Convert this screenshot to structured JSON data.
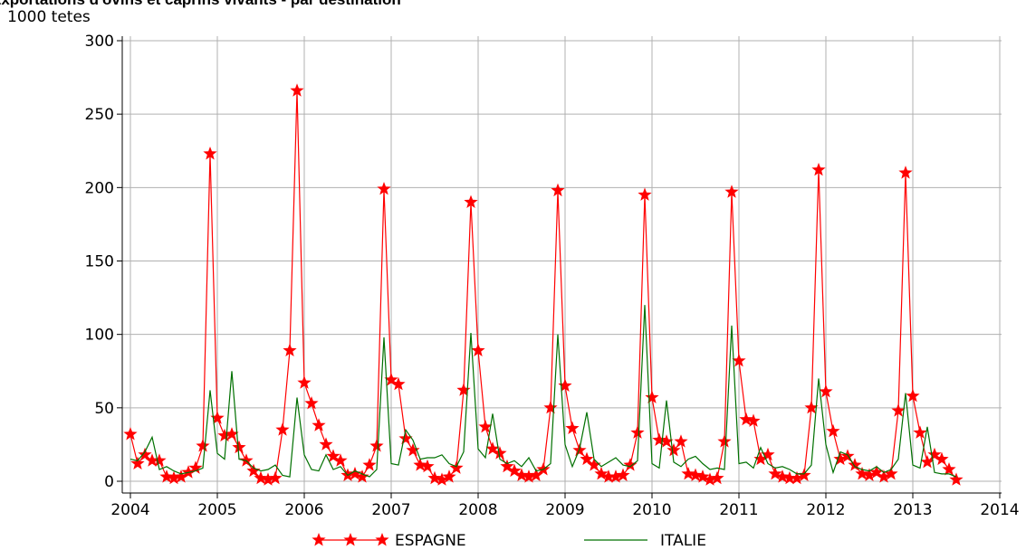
{
  "chart_data": {
    "type": "line",
    "title": "Exportations d'ovins et caprins vivants - par destination",
    "y_label": "1000 tetes",
    "x": [
      2004,
      2004.083,
      2004.167,
      2004.25,
      2004.333,
      2004.417,
      2004.5,
      2004.583,
      2004.667,
      2004.75,
      2004.833,
      2004.917,
      2005,
      2005.083,
      2005.167,
      2005.25,
      2005.333,
      2005.417,
      2005.5,
      2005.583,
      2005.667,
      2005.75,
      2005.833,
      2005.917,
      2006,
      2006.083,
      2006.167,
      2006.25,
      2006.333,
      2006.417,
      2006.5,
      2006.583,
      2006.667,
      2006.75,
      2006.833,
      2006.917,
      2007,
      2007.083,
      2007.167,
      2007.25,
      2007.333,
      2007.417,
      2007.5,
      2007.583,
      2007.667,
      2007.75,
      2007.833,
      2007.917,
      2008,
      2008.083,
      2008.167,
      2008.25,
      2008.333,
      2008.417,
      2008.5,
      2008.583,
      2008.667,
      2008.75,
      2008.833,
      2008.917,
      2009,
      2009.083,
      2009.167,
      2009.25,
      2009.333,
      2009.417,
      2009.5,
      2009.583,
      2009.667,
      2009.75,
      2009.833,
      2009.917,
      2010,
      2010.083,
      2010.167,
      2010.25,
      2010.333,
      2010.417,
      2010.5,
      2010.583,
      2010.667,
      2010.75,
      2010.833,
      2010.917,
      2011,
      2011.083,
      2011.167,
      2011.25,
      2011.333,
      2011.417,
      2011.5,
      2011.583,
      2011.667,
      2011.75,
      2011.833,
      2011.917,
      2012,
      2012.083,
      2012.167,
      2012.25,
      2012.333,
      2012.417,
      2012.5,
      2012.583,
      2012.667,
      2012.75,
      2012.833,
      2012.917,
      2013,
      2013.083,
      2013.167,
      2013.25,
      2013.333,
      2013.417,
      2013.5
    ],
    "series": [
      {
        "name": "ESPAGNE",
        "color": "#ff0000",
        "marker": "star",
        "values": [
          32,
          12,
          18,
          14,
          14,
          3,
          2,
          3,
          6,
          9,
          24,
          223,
          43,
          31,
          32,
          23,
          14,
          7,
          2,
          1,
          2,
          35,
          89,
          266,
          67,
          53,
          38,
          25,
          17,
          14,
          4,
          5,
          3,
          11,
          24,
          199,
          69,
          66,
          29,
          21,
          11,
          10,
          2,
          1,
          3,
          9,
          62,
          190,
          89,
          37,
          22,
          19,
          10,
          7,
          4,
          3,
          4,
          8,
          50,
          198,
          65,
          36,
          21,
          15,
          11,
          5,
          3,
          3,
          4,
          11,
          33,
          195,
          57,
          28,
          27,
          21,
          27,
          5,
          4,
          3,
          1,
          2,
          27,
          197,
          82,
          42,
          41,
          15,
          18,
          5,
          3,
          2,
          2,
          4,
          50,
          212,
          61,
          34,
          15,
          17,
          11,
          5,
          4,
          6,
          3,
          5,
          48,
          210,
          58,
          33,
          13,
          18,
          15,
          8,
          1
        ]
      },
      {
        "name": "ITALIE",
        "color": "#007000",
        "values": [
          15,
          14,
          20,
          30,
          8,
          10,
          7,
          5,
          6,
          7,
          9,
          62,
          19,
          15,
          75,
          15,
          14,
          9,
          7,
          8,
          11,
          4,
          3,
          57,
          18,
          8,
          7,
          18,
          8,
          10,
          4,
          7,
          5,
          3,
          8,
          98,
          12,
          11,
          35,
          28,
          15,
          16,
          16,
          18,
          12,
          10,
          20,
          101,
          22,
          16,
          46,
          15,
          12,
          14,
          10,
          16,
          7,
          8,
          12,
          100,
          25,
          10,
          22,
          47,
          15,
          10,
          13,
          16,
          11,
          10,
          14,
          120,
          12,
          9,
          55,
          13,
          10,
          15,
          17,
          12,
          8,
          9,
          8,
          106,
          12,
          13,
          9,
          23,
          12,
          9,
          10,
          8,
          5,
          5,
          11,
          70,
          25,
          6,
          20,
          18,
          10,
          8,
          7,
          10,
          6,
          8,
          15,
          60,
          11,
          9,
          37,
          6,
          5,
          5,
          3
        ]
      }
    ],
    "xlim": [
      2004,
      2014
    ],
    "xticks": [
      2004,
      2005,
      2006,
      2007,
      2008,
      2009,
      2010,
      2011,
      2012,
      2013,
      2014
    ],
    "ylim": [
      0,
      300
    ],
    "yticks": [
      0,
      50,
      100,
      150,
      200,
      250,
      300
    ],
    "grid": true,
    "legend": "bottom"
  }
}
